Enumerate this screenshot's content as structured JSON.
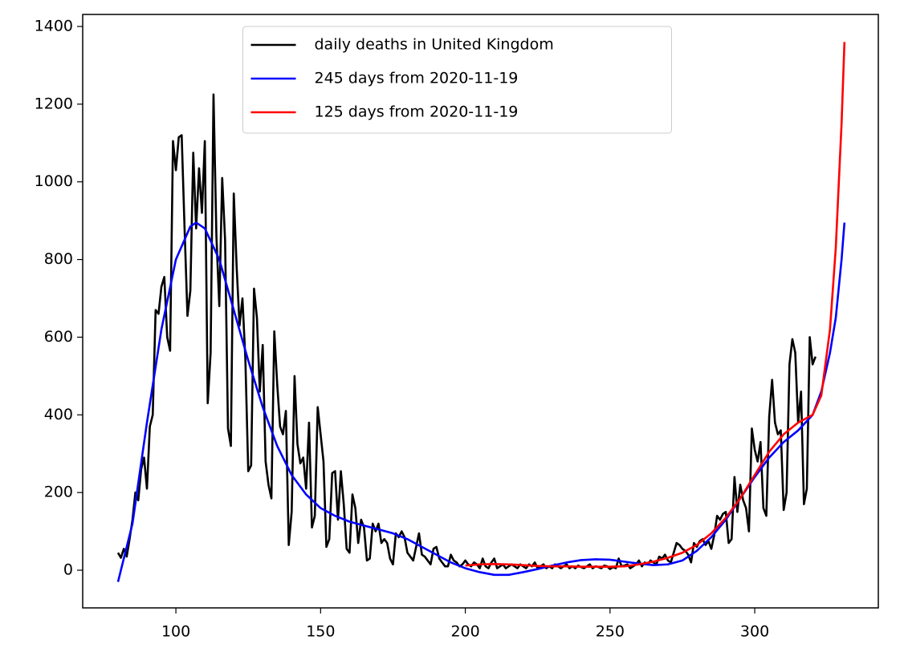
{
  "chart_data": {
    "type": "line",
    "xlim": [
      67.8,
      342.7
    ],
    "ylim": [
      -97,
      1431
    ],
    "xticks": [
      100,
      150,
      200,
      250,
      300
    ],
    "yticks": [
      0,
      200,
      400,
      600,
      800,
      1000,
      1200,
      1400
    ],
    "legend": "upper center",
    "series": [
      {
        "name": "daily deaths in United Kingdom",
        "color": "#000000",
        "x": [
          80,
          81,
          82,
          83,
          84,
          85,
          86,
          87,
          88,
          89,
          90,
          91,
          92,
          93,
          94,
          95,
          96,
          97,
          98,
          99,
          100,
          101,
          102,
          103,
          104,
          105,
          106,
          107,
          108,
          109,
          110,
          111,
          112,
          113,
          114,
          115,
          116,
          117,
          118,
          119,
          120,
          121,
          122,
          123,
          124,
          125,
          126,
          127,
          128,
          129,
          130,
          131,
          132,
          133,
          134,
          135,
          136,
          137,
          138,
          139,
          140,
          141,
          142,
          143,
          144,
          145,
          146,
          147,
          148,
          149,
          150,
          151,
          152,
          153,
          154,
          155,
          156,
          157,
          158,
          159,
          160,
          161,
          162,
          163,
          164,
          165,
          166,
          167,
          168,
          169,
          170,
          171,
          172,
          173,
          174,
          175,
          176,
          177,
          178,
          179,
          180,
          181,
          182,
          183,
          184,
          185,
          186,
          187,
          188,
          189,
          190,
          191,
          192,
          193,
          194,
          195,
          196,
          197,
          198,
          199,
          200,
          201,
          202,
          203,
          204,
          205,
          206,
          207,
          208,
          209,
          210,
          211,
          212,
          213,
          214,
          215,
          216,
          217,
          218,
          219,
          220,
          221,
          222,
          223,
          224,
          225,
          226,
          227,
          228,
          229,
          230,
          231,
          232,
          233,
          234,
          235,
          236,
          237,
          238,
          239,
          240,
          241,
          242,
          243,
          244,
          245,
          246,
          247,
          248,
          249,
          250,
          251,
          252,
          253,
          254,
          255,
          256,
          257,
          258,
          259,
          260,
          261,
          262,
          263,
          264,
          265,
          266,
          267,
          268,
          269,
          270,
          271,
          272,
          273,
          274,
          275,
          276,
          277,
          278,
          279,
          280,
          281,
          282,
          283,
          284,
          285,
          286,
          287,
          288,
          289,
          290,
          291,
          292,
          293,
          294,
          295,
          296,
          297,
          298,
          299,
          300,
          301,
          302,
          303,
          304,
          305,
          306,
          307,
          308,
          309,
          310,
          311,
          312,
          313,
          314,
          315,
          316,
          317,
          318,
          319,
          320,
          321
        ],
        "values": [
          45,
          32,
          55,
          35,
          80,
          130,
          200,
          180,
          260,
          290,
          210,
          370,
          400,
          670,
          660,
          730,
          755,
          600,
          565,
          1105,
          1030,
          1115,
          1120,
          880,
          655,
          720,
          1075,
          880,
          1035,
          920,
          1105,
          430,
          560,
          1225,
          860,
          680,
          1010,
          850,
          365,
          320,
          970,
          780,
          630,
          700,
          545,
          255,
          270,
          725,
          650,
          460,
          580,
          280,
          220,
          185,
          615,
          480,
          370,
          350,
          410,
          65,
          150,
          500,
          325,
          275,
          290,
          210,
          380,
          110,
          140,
          420,
          350,
          280,
          60,
          80,
          250,
          255,
          130,
          255,
          170,
          55,
          45,
          195,
          160,
          70,
          130,
          110,
          25,
          30,
          120,
          100,
          120,
          70,
          80,
          70,
          30,
          15,
          95,
          85,
          100,
          85,
          45,
          35,
          25,
          60,
          95,
          40,
          35,
          25,
          15,
          55,
          60,
          30,
          20,
          10,
          10,
          40,
          25,
          20,
          10,
          15,
          25,
          15,
          10,
          20,
          15,
          5,
          30,
          10,
          5,
          20,
          30,
          5,
          10,
          15,
          5,
          10,
          15,
          10,
          5,
          15,
          10,
          5,
          15,
          10,
          20,
          5,
          10,
          15,
          5,
          10,
          5,
          15,
          10,
          5,
          10,
          15,
          5,
          10,
          5,
          12,
          8,
          5,
          10,
          15,
          5,
          10,
          8,
          5,
          12,
          10,
          3,
          8,
          5,
          30,
          10,
          12,
          15,
          5,
          10,
          15,
          25,
          10,
          20,
          15,
          25,
          20,
          15,
          35,
          30,
          40,
          25,
          20,
          45,
          70,
          65,
          55,
          50,
          40,
          20,
          70,
          60,
          75,
          80,
          65,
          75,
          55,
          90,
          140,
          130,
          145,
          150,
          70,
          80,
          240,
          150,
          220,
          180,
          160,
          100,
          365,
          310,
          280,
          330,
          160,
          140,
          395,
          490,
          380,
          350,
          360,
          155,
          200,
          530,
          595,
          560,
          380,
          460,
          170,
          210,
          600,
          530,
          550
        ]
      },
      {
        "name": "245 days from 2020-11-19",
        "color": "#0000ff",
        "x": [
          80,
          85,
          90,
          95,
          100,
          105,
          107,
          110,
          115,
          120,
          125,
          130,
          135,
          140,
          145,
          150,
          155,
          160,
          165,
          170,
          175,
          180,
          185,
          190,
          195,
          200,
          205,
          210,
          215,
          220,
          225,
          230,
          235,
          240,
          245,
          250,
          255,
          260,
          265,
          270,
          275,
          280,
          285,
          290,
          295,
          300,
          305,
          310,
          315,
          320,
          323,
          326,
          328,
          330,
          331
        ],
        "values": [
          -30,
          120,
          380,
          620,
          800,
          885,
          895,
          880,
          800,
          670,
          540,
          420,
          320,
          245,
          195,
          160,
          140,
          125,
          115,
          105,
          95,
          80,
          60,
          40,
          20,
          5,
          -5,
          -12,
          -12,
          -5,
          3,
          12,
          20,
          26,
          28,
          27,
          22,
          17,
          13,
          15,
          25,
          50,
          85,
          130,
          185,
          240,
          290,
          330,
          360,
          400,
          460,
          560,
          650,
          800,
          895
        ]
      },
      {
        "name": "125 days from 2020-11-19",
        "color": "#ff0000",
        "x": [
          200,
          205,
          210,
          215,
          220,
          225,
          230,
          235,
          240,
          245,
          250,
          255,
          260,
          265,
          270,
          275,
          280,
          285,
          290,
          295,
          300,
          305,
          310,
          315,
          320,
          323,
          326,
          328,
          330,
          331
        ],
        "values": [
          12,
          15,
          16,
          15,
          13,
          11,
          10,
          10,
          9,
          9,
          9,
          10,
          15,
          22,
          32,
          45,
          65,
          95,
          135,
          185,
          245,
          305,
          350,
          380,
          400,
          450,
          620,
          830,
          1150,
          1360
        ]
      }
    ]
  }
}
